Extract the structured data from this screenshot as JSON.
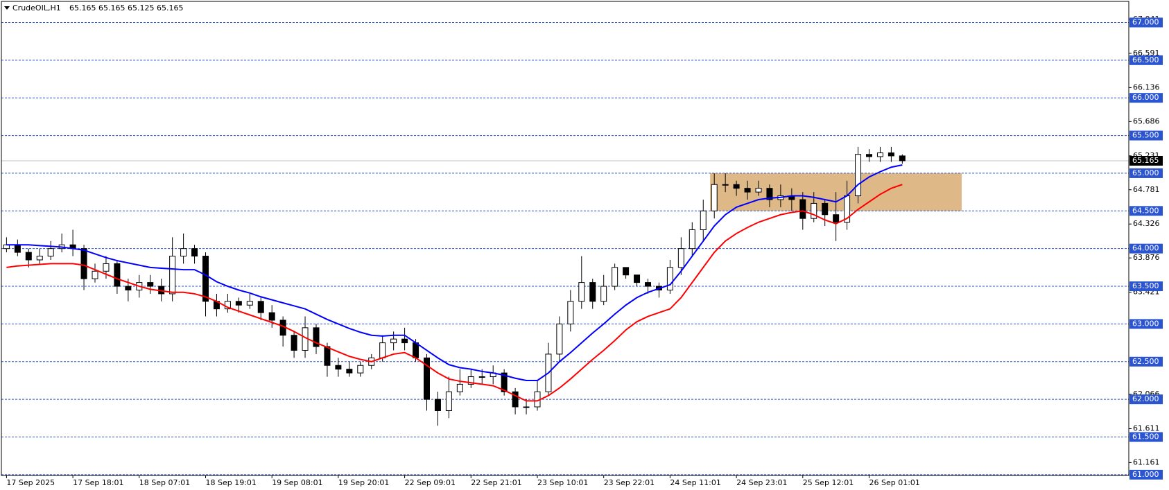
{
  "header": {
    "symbol": "CrudeOIL,H1",
    "quote": "65.165 65.165 65.125 65.165"
  },
  "chart_data": {
    "type": "candlestick",
    "categories": [
      "17 Sep 2025",
      null,
      null,
      null,
      null,
      null,
      "17 Sep 18:01",
      null,
      null,
      null,
      null,
      null,
      "18 Sep 07:01",
      null,
      null,
      null,
      null,
      null,
      "18 Sep 19:01",
      null,
      null,
      null,
      null,
      null,
      "19 Sep 08:01",
      null,
      null,
      null,
      null,
      null,
      "19 Sep 20:01",
      null,
      null,
      null,
      null,
      null,
      "22 Sep 09:01",
      null,
      null,
      null,
      null,
      null,
      "22 Sep 21:01",
      null,
      null,
      null,
      null,
      null,
      "23 Sep 10:01",
      null,
      null,
      null,
      null,
      null,
      "23 Sep 22:01",
      null,
      null,
      null,
      null,
      null,
      "24 Sep 11:01",
      null,
      null,
      null,
      null,
      null,
      "24 Sep 23:01",
      null,
      null,
      null,
      null,
      null,
      "25 Sep 12:01",
      null,
      null,
      null,
      null,
      null,
      "26 Sep 01:01",
      null,
      null,
      null
    ],
    "open": [
      64.0,
      64.05,
      63.95,
      63.85,
      63.9,
      64.0,
      64.05,
      64.0,
      63.6,
      63.7,
      63.8,
      63.5,
      63.45,
      63.55,
      63.5,
      63.4,
      63.9,
      64.0,
      63.9,
      63.3,
      63.2,
      63.3,
      63.25,
      63.3,
      63.15,
      63.05,
      62.85,
      62.65,
      62.95,
      62.7,
      62.45,
      62.4,
      62.35,
      62.45,
      62.55,
      62.75,
      62.8,
      62.75,
      62.55,
      62.0,
      61.85,
      62.1,
      62.2,
      62.3,
      62.3,
      62.35,
      62.1,
      61.9,
      61.9,
      62.1,
      62.6,
      63.0,
      63.3,
      63.55,
      63.3,
      63.5,
      63.75,
      63.65,
      63.55,
      63.5,
      63.45,
      63.75,
      64.0,
      64.25,
      64.5,
      64.85,
      64.85,
      64.8,
      64.75,
      64.8,
      64.65,
      64.7,
      64.65,
      64.4,
      64.6,
      64.45,
      64.35,
      64.7,
      65.25,
      65.22,
      65.27,
      65.23
    ],
    "high": [
      64.15,
      64.12,
      64.0,
      64.0,
      64.1,
      64.2,
      64.25,
      64.05,
      63.8,
      63.9,
      63.85,
      63.6,
      63.65,
      63.65,
      63.6,
      64.15,
      64.2,
      64.05,
      63.95,
      63.4,
      63.4,
      63.35,
      63.4,
      63.35,
      63.25,
      63.1,
      62.9,
      63.1,
      63.0,
      62.75,
      62.55,
      62.5,
      62.5,
      62.6,
      62.85,
      62.9,
      62.95,
      62.8,
      62.6,
      62.1,
      62.3,
      62.4,
      62.4,
      62.4,
      62.45,
      62.4,
      62.15,
      62.0,
      62.25,
      62.75,
      63.1,
      63.45,
      63.9,
      63.6,
      63.65,
      63.8,
      63.75,
      63.65,
      63.6,
      63.55,
      63.85,
      64.15,
      64.35,
      64.65,
      65.0,
      65.0,
      64.9,
      64.9,
      64.9,
      64.85,
      64.85,
      64.8,
      64.75,
      64.75,
      64.65,
      64.75,
      64.9,
      65.35,
      65.32,
      65.35,
      65.35,
      65.25
    ],
    "low": [
      63.95,
      63.9,
      63.75,
      63.8,
      63.85,
      63.95,
      63.9,
      63.45,
      63.55,
      63.6,
      63.4,
      63.3,
      63.35,
      63.4,
      63.3,
      63.3,
      63.8,
      63.8,
      63.1,
      63.1,
      63.15,
      63.15,
      63.2,
      63.05,
      62.95,
      62.7,
      62.55,
      62.55,
      62.6,
      62.3,
      62.3,
      62.3,
      62.3,
      62.4,
      62.5,
      62.65,
      62.65,
      62.5,
      61.85,
      61.65,
      61.75,
      62.05,
      62.15,
      62.2,
      62.2,
      62.05,
      61.8,
      61.8,
      61.85,
      62.05,
      62.5,
      62.9,
      63.2,
      63.2,
      63.25,
      63.45,
      63.6,
      63.5,
      63.4,
      63.35,
      63.4,
      63.65,
      63.9,
      64.1,
      64.4,
      64.75,
      64.7,
      64.65,
      64.7,
      64.55,
      64.55,
      64.5,
      64.25,
      64.35,
      64.3,
      64.1,
      64.25,
      64.6,
      65.15,
      65.15,
      65.15,
      65.125
    ],
    "close": [
      64.05,
      63.95,
      63.85,
      63.9,
      64.0,
      64.05,
      64.0,
      63.6,
      63.7,
      63.8,
      63.5,
      63.45,
      63.55,
      63.5,
      63.4,
      63.9,
      64.0,
      63.9,
      63.3,
      63.2,
      63.3,
      63.25,
      63.3,
      63.15,
      63.05,
      62.85,
      62.65,
      62.95,
      62.7,
      62.45,
      62.4,
      62.35,
      62.45,
      62.55,
      62.75,
      62.8,
      62.75,
      62.55,
      62.0,
      61.85,
      62.1,
      62.2,
      62.3,
      62.3,
      62.35,
      62.1,
      61.9,
      61.9,
      62.1,
      62.6,
      63.0,
      63.3,
      63.55,
      63.3,
      63.5,
      63.75,
      63.65,
      63.55,
      63.5,
      63.45,
      63.75,
      64.0,
      64.25,
      64.5,
      64.85,
      64.85,
      64.8,
      64.75,
      64.8,
      64.65,
      64.7,
      64.65,
      64.4,
      64.6,
      64.45,
      64.35,
      64.7,
      65.25,
      65.22,
      65.27,
      65.23,
      65.165
    ],
    "lines": [
      {
        "color": "#0000ff",
        "values": [
          64.05,
          64.05,
          64.05,
          64.04,
          64.03,
          64.02,
          64.0,
          63.98,
          63.93,
          63.88,
          63.84,
          63.81,
          63.78,
          63.75,
          63.74,
          63.73,
          63.72,
          63.72,
          63.65,
          63.56,
          63.5,
          63.45,
          63.41,
          63.36,
          63.32,
          63.28,
          63.24,
          63.2,
          63.13,
          63.06,
          63.0,
          62.94,
          62.89,
          62.85,
          62.84,
          62.85,
          62.85,
          62.75,
          62.65,
          62.55,
          62.46,
          62.42,
          62.4,
          62.37,
          62.35,
          62.32,
          62.28,
          62.25,
          62.25,
          62.35,
          62.5,
          62.62,
          62.75,
          62.88,
          63.0,
          63.13,
          63.25,
          63.35,
          63.42,
          63.47,
          63.52,
          63.7,
          63.9,
          64.1,
          64.3,
          64.45,
          64.55,
          64.6,
          64.65,
          64.67,
          64.68,
          64.7,
          64.7,
          64.68,
          64.65,
          64.62,
          64.7,
          64.85,
          64.95,
          65.02,
          65.08,
          65.11
        ]
      },
      {
        "color": "#ff0000",
        "values": [
          63.75,
          63.77,
          63.78,
          63.79,
          63.8,
          63.8,
          63.8,
          63.78,
          63.72,
          63.66,
          63.6,
          63.55,
          63.5,
          63.46,
          63.44,
          63.42,
          63.42,
          63.4,
          63.36,
          63.3,
          63.22,
          63.17,
          63.12,
          63.07,
          63.02,
          62.97,
          62.9,
          62.82,
          62.75,
          62.69,
          62.63,
          62.57,
          62.53,
          62.5,
          62.55,
          62.6,
          62.62,
          62.55,
          62.45,
          62.35,
          62.27,
          62.24,
          62.22,
          62.2,
          62.18,
          62.12,
          62.05,
          61.98,
          61.98,
          62.05,
          62.15,
          62.27,
          62.4,
          62.53,
          62.65,
          62.78,
          62.92,
          63.03,
          63.1,
          63.15,
          63.2,
          63.35,
          63.55,
          63.75,
          63.95,
          64.1,
          64.2,
          64.28,
          64.35,
          64.4,
          64.45,
          64.48,
          64.5,
          64.45,
          64.38,
          64.33,
          64.4,
          64.52,
          64.62,
          64.72,
          64.8,
          64.85
        ]
      }
    ],
    "zone": {
      "from": 64.5,
      "to": 65.0,
      "color": "#deb887"
    },
    "levels": {
      "color": "#2b55d0",
      "values": [
        {
          "value": 67,
          "label": "67.000"
        },
        {
          "value": 66.5,
          "label": "66.500"
        },
        {
          "value": 66,
          "label": "66.000"
        },
        {
          "value": 65.5,
          "label": "65.500"
        },
        {
          "value": 65,
          "label": "65.000"
        },
        {
          "value": 64.5,
          "label": "64.500"
        },
        {
          "value": 64,
          "label": "64.000"
        },
        {
          "value": 63.5,
          "label": "63.500"
        },
        {
          "value": 63,
          "label": "63.000"
        },
        {
          "value": 62.5,
          "label": "62.500"
        },
        {
          "value": 62,
          "label": "62.000"
        },
        {
          "value": 61.5,
          "label": "61.500"
        },
        {
          "value": 61,
          "label": "61.000"
        }
      ]
    },
    "last_price": 65.165,
    "ylim": [
      60.99,
      67.28
    ],
    "yticks": [
      67.041,
      66.591,
      66.136,
      65.686,
      65.231,
      64.781,
      64.326,
      63.876,
      63.421,
      62.066,
      61.611,
      61.161
    ]
  }
}
